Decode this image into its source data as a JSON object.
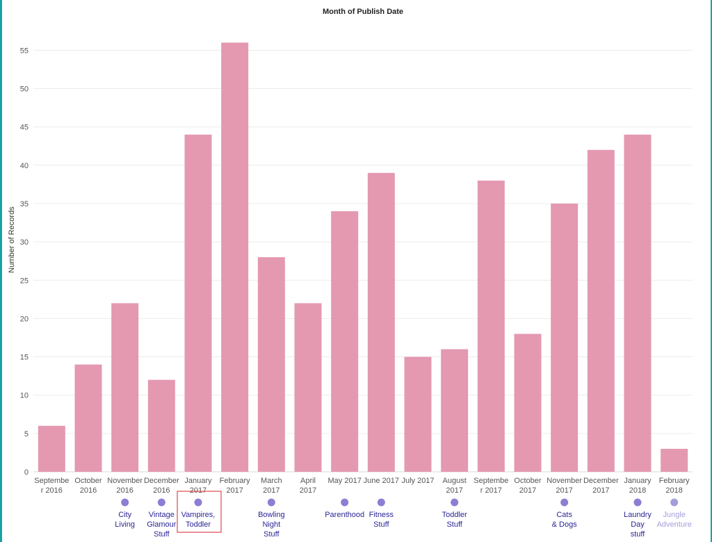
{
  "chart_data": {
    "type": "bar",
    "title": "Month of Publish Date",
    "ylabel": "Number of Records",
    "xlabel": "",
    "ylim": [
      0,
      58
    ],
    "yticks": [
      0,
      5,
      10,
      15,
      20,
      25,
      30,
      35,
      40,
      45,
      50,
      55
    ],
    "grid": true,
    "bar_color": "#e499b1",
    "categories": [
      [
        "Septembe",
        "r 2016"
      ],
      [
        "October",
        "2016"
      ],
      [
        "November",
        "2016"
      ],
      [
        "December",
        "2016"
      ],
      [
        "January",
        "2017"
      ],
      [
        "February",
        "2017"
      ],
      [
        "March",
        "2017"
      ],
      [
        "April",
        "2017"
      ],
      [
        "May 2017"
      ],
      [
        "June 2017"
      ],
      [
        "July 2017"
      ],
      [
        "August",
        "2017"
      ],
      [
        "Septembe",
        "r 2017"
      ],
      [
        "October",
        "2017"
      ],
      [
        "November",
        "2017"
      ],
      [
        "December",
        "2017"
      ],
      [
        "January",
        "2018"
      ],
      [
        "February",
        "2018"
      ]
    ],
    "values": [
      6,
      14,
      22,
      12,
      44,
      56,
      28,
      22,
      34,
      39,
      15,
      16,
      38,
      18,
      35,
      42,
      44,
      3
    ],
    "annotations": [
      {
        "category_index": 2,
        "lines": [
          "City",
          "Living"
        ],
        "faded": false,
        "highlighted": false
      },
      {
        "category_index": 3,
        "lines": [
          "Vintage",
          "Glamour",
          "Stuff"
        ],
        "faded": false,
        "highlighted": false
      },
      {
        "category_index": 4,
        "lines": [
          "Vampires,",
          "Toddler"
        ],
        "faded": false,
        "highlighted": true
      },
      {
        "category_index": 6,
        "lines": [
          "Bowling",
          "Night",
          "Stuff"
        ],
        "faded": false,
        "highlighted": false
      },
      {
        "category_index": 8,
        "lines": [
          "Parenthood"
        ],
        "faded": false,
        "highlighted": false
      },
      {
        "category_index": 9,
        "lines": [
          "Fitness",
          "Stuff"
        ],
        "faded": false,
        "highlighted": false
      },
      {
        "category_index": 11,
        "lines": [
          "Toddler",
          "Stuff"
        ],
        "faded": false,
        "highlighted": false
      },
      {
        "category_index": 14,
        "lines": [
          "Cats",
          "& Dogs"
        ],
        "faded": false,
        "highlighted": false
      },
      {
        "category_index": 16,
        "lines": [
          "Laundry",
          "Day",
          "stuff"
        ],
        "faded": false,
        "highlighted": false
      },
      {
        "category_index": 17,
        "lines": [
          "Jungle",
          "Adventure"
        ],
        "faded": true,
        "highlighted": false
      }
    ],
    "annotation_color": "#2b2594",
    "annotation_dot_color": "#8a7fd4",
    "annotation_faded_color": "#a49ddb",
    "highlight_box_color": "#e0454f"
  }
}
